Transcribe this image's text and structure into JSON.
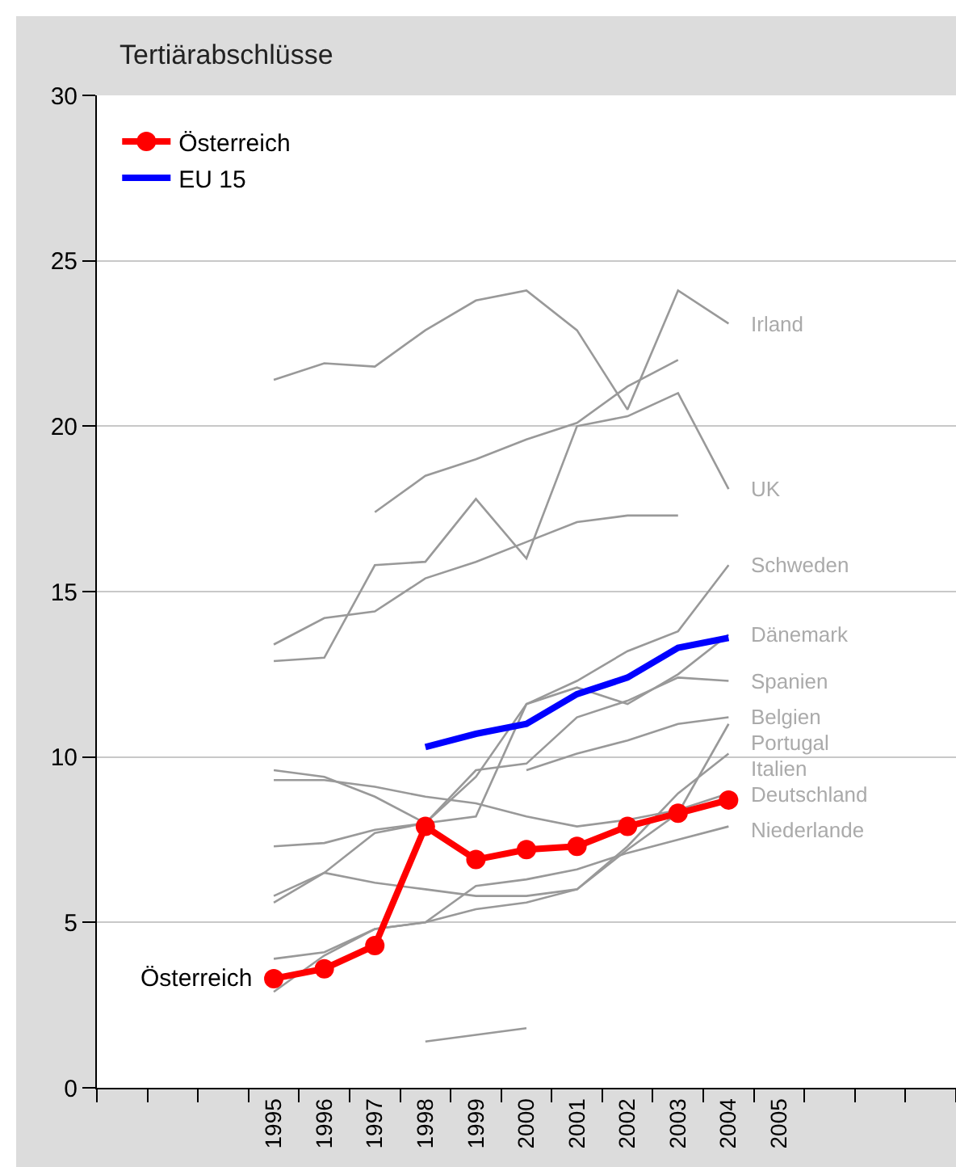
{
  "chart_data": {
    "type": "line",
    "title": "Tertiärabschlüsse",
    "categories": [
      null,
      null,
      null,
      "1995",
      "1996",
      "1997",
      "1998",
      "1999",
      "2000",
      "2001",
      "2002",
      "2003",
      "2004",
      "2005",
      null,
      null,
      null
    ],
    "ylim": [
      0,
      30
    ],
    "yticks": [
      0,
      5,
      10,
      15,
      20,
      25,
      30
    ],
    "grid": "y",
    "legend": "top left",
    "series": [
      {
        "color": "#999999",
        "marker": "none",
        "values": [
          null,
          null,
          null,
          21.4,
          21.9,
          21.8,
          22.9,
          23.8,
          24.1,
          22.9,
          20.5,
          24.1,
          23.1,
          null,
          null,
          null,
          null
        ]
      },
      {
        "color": "#999999",
        "marker": "none",
        "values": [
          null,
          null,
          null,
          null,
          null,
          17.4,
          18.5,
          19.0,
          19.6,
          20.1,
          21.2,
          22.0,
          null,
          null,
          null,
          null,
          null
        ]
      },
      {
        "color": "#999999",
        "marker": "none",
        "values": [
          null,
          null,
          null,
          12.9,
          13.0,
          15.8,
          15.9,
          17.8,
          16.0,
          20.0,
          20.3,
          21.0,
          18.1,
          null,
          null,
          null,
          null
        ]
      },
      {
        "color": "#999999",
        "marker": "none",
        "values": [
          null,
          null,
          null,
          13.4,
          14.2,
          14.4,
          15.4,
          15.9,
          16.5,
          17.1,
          17.3,
          17.3,
          null,
          null,
          null,
          null,
          null
        ]
      },
      {
        "color": "#999999",
        "marker": "none",
        "values": [
          null,
          null,
          null,
          7.3,
          7.4,
          7.8,
          8.0,
          9.4,
          11.6,
          12.3,
          13.2,
          13.8,
          15.8,
          null,
          null,
          null,
          null
        ]
      },
      {
        "color": "#999999",
        "marker": "none",
        "values": [
          null,
          null,
          null,
          5.8,
          6.5,
          7.7,
          8.0,
          8.2,
          11.6,
          12.1,
          11.6,
          12.5,
          13.7,
          null,
          null,
          null,
          null
        ]
      },
      {
        "color": "#999999",
        "marker": "none",
        "values": [
          null,
          null,
          null,
          9.6,
          9.4,
          8.8,
          8.0,
          9.6,
          9.8,
          11.2,
          11.7,
          12.4,
          12.3,
          null,
          null,
          null,
          null
        ]
      },
      {
        "color": "#999999",
        "marker": "none",
        "values": [
          null,
          null,
          null,
          null,
          null,
          null,
          null,
          null,
          9.6,
          10.1,
          10.5,
          11.0,
          11.2,
          null,
          null,
          null,
          null
        ]
      },
      {
        "color": "#999999",
        "marker": "none",
        "values": [
          null,
          null,
          null,
          5.6,
          6.5,
          6.2,
          6.0,
          5.8,
          5.8,
          6.0,
          7.2,
          8.3,
          11.0,
          null,
          null,
          null,
          null
        ]
      },
      {
        "color": "#999999",
        "marker": "none",
        "values": [
          null,
          null,
          null,
          3.9,
          4.1,
          4.8,
          5.0,
          5.4,
          5.6,
          6.0,
          7.3,
          8.9,
          10.1,
          null,
          null,
          null,
          null
        ]
      },
      {
        "color": "#999999",
        "marker": "none",
        "values": [
          null,
          null,
          null,
          9.3,
          9.3,
          9.1,
          8.8,
          8.6,
          8.2,
          7.9,
          8.1,
          8.4,
          8.9,
          null,
          null,
          null,
          null
        ]
      },
      {
        "color": "#999999",
        "marker": "none",
        "values": [
          null,
          null,
          null,
          2.9,
          4.0,
          4.8,
          5.0,
          6.1,
          6.3,
          6.6,
          7.1,
          7.5,
          7.9,
          null,
          null,
          null,
          null
        ]
      },
      {
        "color": "#999999",
        "marker": "none",
        "values": [
          null,
          null,
          null,
          null,
          null,
          null,
          1.4,
          1.6,
          1.8,
          null,
          null,
          null,
          null,
          null,
          null,
          null,
          null
        ]
      },
      {
        "name": "EU 15",
        "color": "#0000ff",
        "marker": "none",
        "values": [
          null,
          null,
          null,
          null,
          null,
          null,
          10.3,
          10.7,
          11.0,
          11.9,
          12.4,
          13.3,
          13.6,
          null,
          null,
          null,
          null
        ]
      },
      {
        "name": "Österreich",
        "color": "#ff0000",
        "marker": "circle",
        "values": [
          null,
          null,
          null,
          3.3,
          3.6,
          4.3,
          7.9,
          6.9,
          7.2,
          7.3,
          7.9,
          8.3,
          8.7,
          null,
          null,
          null,
          null
        ]
      }
    ],
    "annotations": [
      {
        "text": "Österreich",
        "x": "1995",
        "y": 3.3
      },
      {
        "text": "Irland",
        "x": "2004",
        "y": 23.1
      },
      {
        "text": "UK",
        "x": "2004",
        "y": 18.1
      },
      {
        "text": "Schweden",
        "x": "2004",
        "y": 15.8
      },
      {
        "text": "Dänemark",
        "x": "2004",
        "y": 13.7
      },
      {
        "text": "Spanien",
        "x": "2004",
        "y": 12.3
      },
      {
        "text": "Belgien",
        "x": "2004",
        "y": 11.2
      },
      {
        "text": "Portugal",
        "x": "2004",
        "y": 10.9
      },
      {
        "text": "Italien",
        "x": "2004",
        "y": 10.1
      },
      {
        "text": "Deutschland",
        "x": "2004",
        "y": 8.9
      },
      {
        "text": "Niederlande",
        "x": "2004",
        "y": 7.8
      }
    ]
  }
}
